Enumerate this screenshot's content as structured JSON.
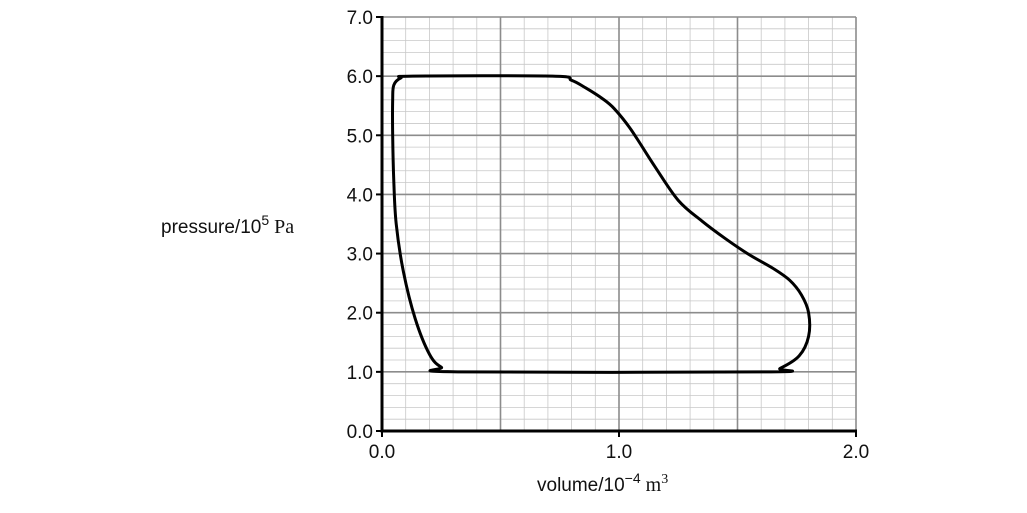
{
  "chart_data": {
    "type": "line",
    "title": "",
    "xlabel": {
      "quantity": "volume",
      "slash": "/",
      "power_base": "10",
      "power_exp": "−4",
      "unit": "m",
      "unit_exp": "3"
    },
    "ylabel": {
      "quantity": "pressure",
      "slash": "/",
      "power_base": "10",
      "power_exp": "5",
      "unit": "Pa"
    },
    "xlim": [
      0,
      2.0
    ],
    "ylim": [
      0,
      7.0
    ],
    "x_ticks": [
      "0.0",
      "1.0",
      "2.0"
    ],
    "x_tick_values": [
      0,
      1.0,
      2.0
    ],
    "y_ticks": [
      "0.0",
      "1.0",
      "2.0",
      "3.0",
      "4.0",
      "5.0",
      "6.0",
      "7.0"
    ],
    "y_tick_values": [
      0,
      1,
      2,
      3,
      4,
      5,
      6,
      7
    ],
    "grid": {
      "major_x": 0.5,
      "major_y": 1.0,
      "minor_x": 0.1,
      "minor_y": 0.2
    },
    "series": [
      {
        "closed": true,
        "points": [
          [
            0.13,
            6.0
          ],
          [
            0.72,
            6.0
          ],
          [
            0.8,
            5.93
          ],
          [
            0.86,
            5.8
          ],
          [
            0.93,
            5.62
          ],
          [
            0.98,
            5.45
          ],
          [
            1.05,
            5.1
          ],
          [
            1.15,
            4.48
          ],
          [
            1.25,
            3.9
          ],
          [
            1.35,
            3.55
          ],
          [
            1.45,
            3.25
          ],
          [
            1.55,
            2.98
          ],
          [
            1.65,
            2.75
          ],
          [
            1.72,
            2.55
          ],
          [
            1.77,
            2.3
          ],
          [
            1.8,
            2.0
          ],
          [
            1.8,
            1.6
          ],
          [
            1.76,
            1.27
          ],
          [
            1.68,
            1.06
          ],
          [
            1.62,
            1.0
          ],
          [
            0.32,
            1.0
          ],
          [
            0.25,
            1.08
          ],
          [
            0.2,
            1.3
          ],
          [
            0.14,
            1.9
          ],
          [
            0.09,
            2.7
          ],
          [
            0.06,
            3.5
          ],
          [
            0.05,
            4.2
          ],
          [
            0.045,
            5.0
          ],
          [
            0.045,
            5.6
          ],
          [
            0.05,
            5.85
          ],
          [
            0.08,
            5.97
          ]
        ]
      }
    ]
  }
}
